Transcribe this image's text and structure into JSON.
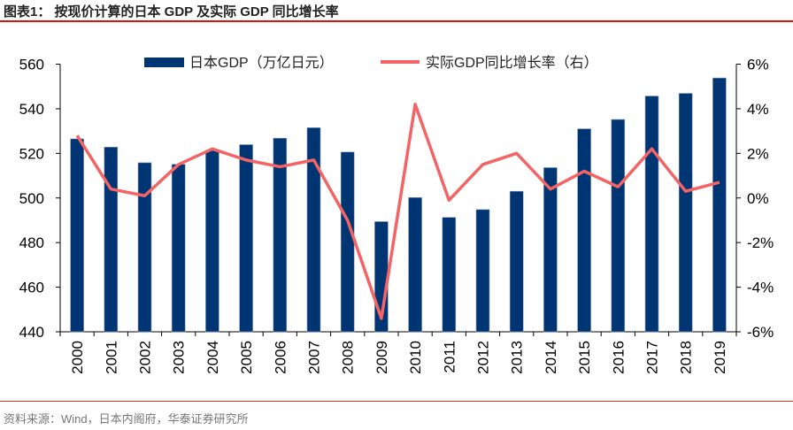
{
  "title": "图表1：  按现价计算的日本 GDP 及实际 GDP 同比增长率",
  "source": "资料来源：Wind，日本内阁府，华泰证券研究所",
  "colors": {
    "bar": "#003574",
    "line": "#f46464",
    "rule": "#d9150b"
  },
  "chart_data": {
    "type": "bar+line",
    "categories": [
      "2000",
      "2001",
      "2002",
      "2003",
      "2004",
      "2005",
      "2006",
      "2007",
      "2008",
      "2009",
      "2010",
      "2011",
      "2012",
      "2013",
      "2014",
      "2015",
      "2016",
      "2017",
      "2018",
      "2019"
    ],
    "series": [
      {
        "name": "日本GDP（万亿日元）",
        "type": "bar",
        "axis": "left",
        "values": [
          526.5,
          522.8,
          515.8,
          515.1,
          521.2,
          523.9,
          526.8,
          531.5,
          520.6,
          489.4,
          500.2,
          491.3,
          494.8,
          503.0,
          513.6,
          531.0,
          535.2,
          545.7,
          546.9,
          553.8
        ]
      },
      {
        "name": "实际GDP同比增长率（右）",
        "type": "line",
        "axis": "right",
        "unit": "%",
        "values": [
          2.8,
          0.4,
          0.1,
          1.5,
          2.2,
          1.7,
          1.4,
          1.7,
          -1.0,
          -5.4,
          4.2,
          -0.1,
          1.5,
          2.0,
          0.4,
          1.2,
          0.5,
          2.2,
          0.3,
          0.7
        ]
      }
    ],
    "y_left": {
      "range": [
        440,
        560
      ],
      "ticks": [
        "440",
        "460",
        "480",
        "500",
        "520",
        "540",
        "560"
      ]
    },
    "y_right": {
      "range": [
        -6,
        6
      ],
      "ticks": [
        "-6%",
        "-4%",
        "-2%",
        "0%",
        "2%",
        "4%",
        "6%"
      ]
    },
    "grid": false,
    "legend": "top"
  }
}
